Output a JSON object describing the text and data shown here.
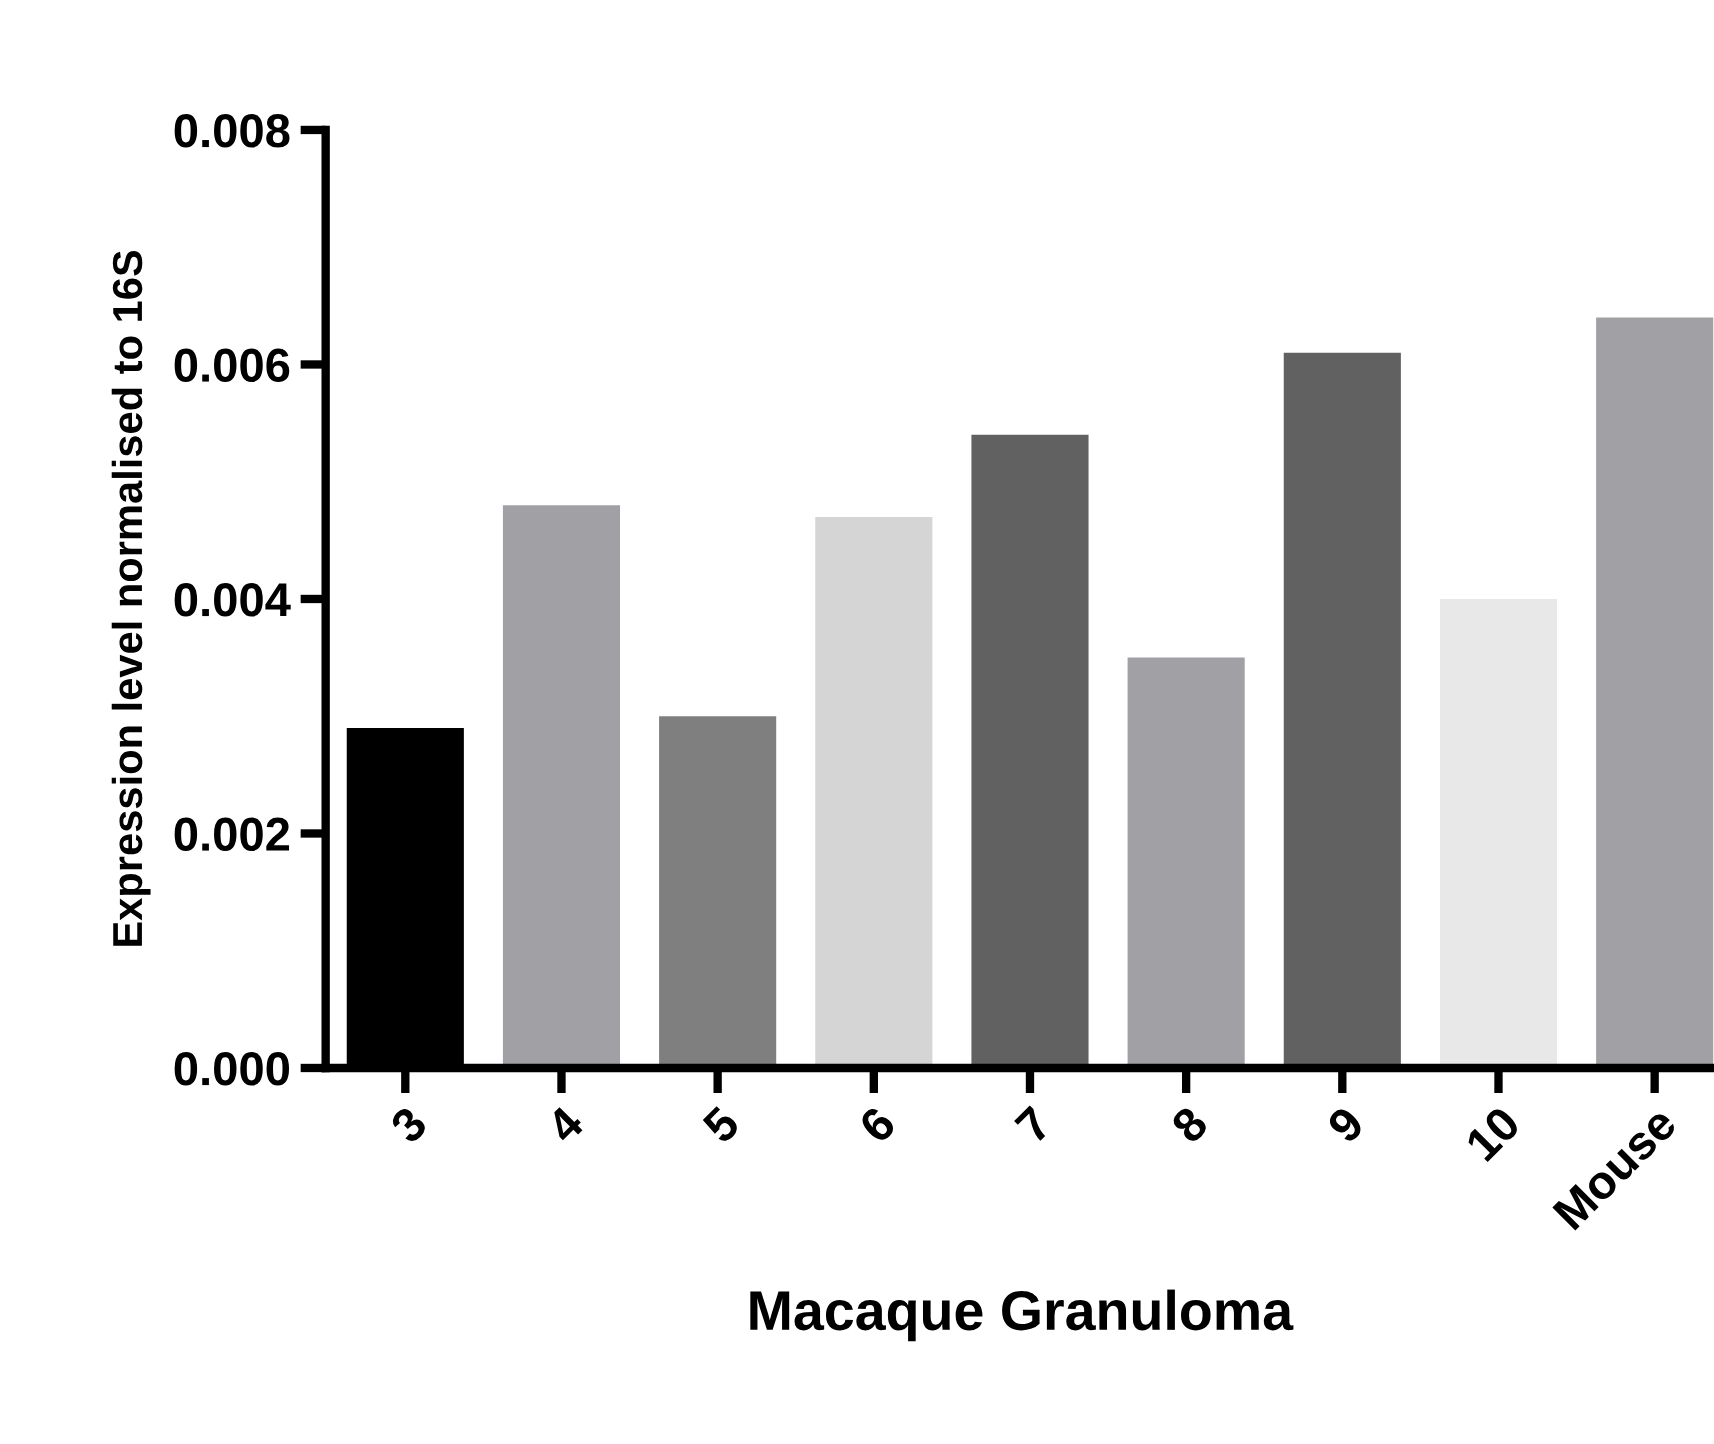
{
  "chart_data": {
    "type": "bar",
    "xlabel": "Macaque Granuloma",
    "ylabel": "Expression level normalised to 16S",
    "categories": [
      "3",
      "4",
      "5",
      "6",
      "7",
      "8",
      "9",
      "10",
      "Mouse"
    ],
    "values": [
      0.0029,
      0.0048,
      0.003,
      0.0047,
      0.0054,
      0.0035,
      0.0061,
      0.004,
      0.0064
    ],
    "colors": [
      "#000000",
      "#a1a1a5",
      "#7f7f7f",
      "#d5d5d5",
      "#616161",
      "#a1a1a5",
      "#616161",
      "#e8e8e8",
      "#a1a1a5"
    ],
    "ylim": [
      0,
      0.008
    ],
    "yticks": [
      {
        "value": 0,
        "label": "0.000"
      },
      {
        "value": 0.002,
        "label": "0.002"
      },
      {
        "value": 0.004,
        "label": "0.004"
      },
      {
        "value": 0.006,
        "label": "0.006"
      },
      {
        "value": 0.008,
        "label": "0.008"
      }
    ],
    "grid": false,
    "legend": false
  }
}
